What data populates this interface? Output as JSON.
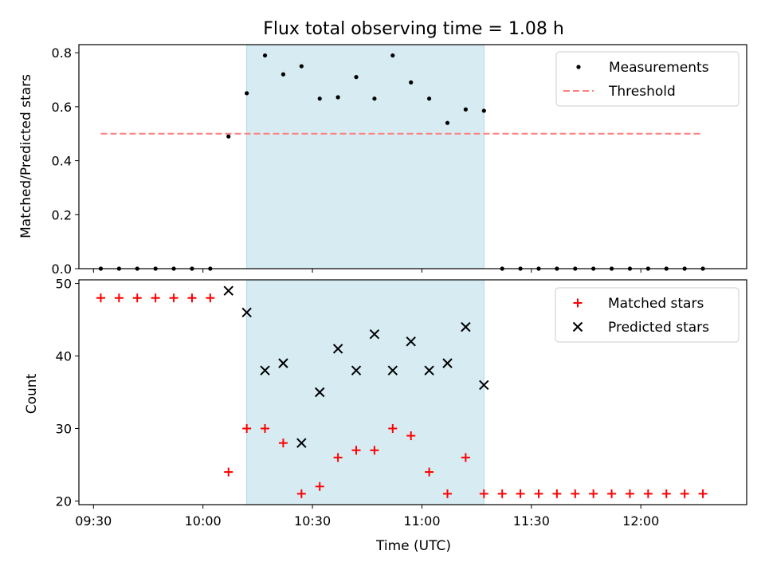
{
  "title": "Flux total observing time = 1.08 h",
  "xlabel": "Time (UTC)",
  "colors": {
    "highlight": "#add8e6",
    "threshold": "#ff7f7f",
    "matched": "#ff0000",
    "predicted": "#000000",
    "measurements": "#000000"
  },
  "chart_data": [
    {
      "type": "scatter",
      "ylabel": "Matched/Predicted stars",
      "xlim": [
        "09:26",
        "12:29"
      ],
      "ylim": [
        0,
        0.83
      ],
      "yticks": [
        0.0,
        0.2,
        0.4,
        0.6,
        0.8
      ],
      "ytick_labels": [
        "0.0",
        "0.2",
        "0.4",
        "0.6",
        "0.8"
      ],
      "highlight_span": [
        "10:12",
        "11:17"
      ],
      "legend": {
        "placement": "top-right",
        "entries": [
          "Measurements",
          "Threshold"
        ]
      },
      "series": [
        {
          "name": "Measurements",
          "marker": "dot",
          "x": [
            "09:32",
            "09:37",
            "09:42",
            "09:47",
            "09:52",
            "09:57",
            "10:02",
            "10:07",
            "10:12",
            "10:17",
            "10:22",
            "10:27",
            "10:32",
            "10:37",
            "10:42",
            "10:47",
            "10:52",
            "10:57",
            "11:02",
            "11:07",
            "11:12",
            "11:17",
            "11:22",
            "11:27",
            "11:32",
            "11:37",
            "11:42",
            "11:47",
            "11:52",
            "11:57",
            "12:02",
            "12:07",
            "12:12",
            "12:17"
          ],
          "y": [
            0,
            0,
            0,
            0,
            0,
            0,
            0,
            0.49,
            0.65,
            0.79,
            0.72,
            0.75,
            0.63,
            0.635,
            0.71,
            0.63,
            0.79,
            0.69,
            0.63,
            0.54,
            0.59,
            0.585,
            0,
            0,
            0,
            0,
            0,
            0,
            0,
            0,
            0,
            0,
            0,
            0
          ]
        },
        {
          "name": "Threshold",
          "style": "dashed",
          "x": [
            "09:32",
            "12:17"
          ],
          "y": [
            0.5,
            0.5
          ]
        }
      ]
    },
    {
      "type": "scatter",
      "ylabel": "Count",
      "xlim": [
        "09:26",
        "12:29"
      ],
      "ylim": [
        19.5,
        50.5
      ],
      "yticks": [
        20,
        30,
        40,
        50
      ],
      "ytick_labels": [
        "20",
        "30",
        "40",
        "50"
      ],
      "xticks": [
        "09:30",
        "10:00",
        "10:30",
        "11:00",
        "11:30",
        "12:00"
      ],
      "xtick_labels": [
        "09:30",
        "10:00",
        "10:30",
        "11:00",
        "11:30",
        "12:00"
      ],
      "highlight_span": [
        "10:12",
        "11:17"
      ],
      "legend": {
        "placement": "top-right",
        "entries": [
          "Matched stars",
          "Predicted stars"
        ]
      },
      "series": [
        {
          "name": "Matched stars",
          "marker": "plus",
          "x": [
            "09:32",
            "09:37",
            "09:42",
            "09:47",
            "09:52",
            "09:57",
            "10:02",
            "10:07",
            "10:12",
            "10:17",
            "10:22",
            "10:27",
            "10:32",
            "10:37",
            "10:42",
            "10:47",
            "10:52",
            "10:57",
            "11:02",
            "11:07",
            "11:12",
            "11:17",
            "11:22",
            "11:27",
            "11:32",
            "11:37",
            "11:42",
            "11:47",
            "11:52",
            "11:57",
            "12:02",
            "12:07",
            "12:12",
            "12:17"
          ],
          "y": [
            48,
            48,
            48,
            48,
            48,
            48,
            48,
            24,
            30,
            30,
            28,
            21,
            22,
            26,
            27,
            27,
            30,
            29,
            24,
            21,
            26,
            21,
            21,
            21,
            21,
            21,
            21,
            21,
            21,
            21,
            21,
            21,
            21,
            21
          ]
        },
        {
          "name": "Predicted stars",
          "marker": "x",
          "x": [
            "10:07",
            "10:12",
            "10:17",
            "10:22",
            "10:27",
            "10:32",
            "10:37",
            "10:42",
            "10:47",
            "10:52",
            "10:57",
            "11:02",
            "11:07",
            "11:12",
            "11:17"
          ],
          "y": [
            49,
            46,
            38,
            39,
            28,
            35,
            41,
            38,
            43,
            38,
            42,
            38,
            39,
            44,
            36
          ]
        }
      ]
    }
  ]
}
